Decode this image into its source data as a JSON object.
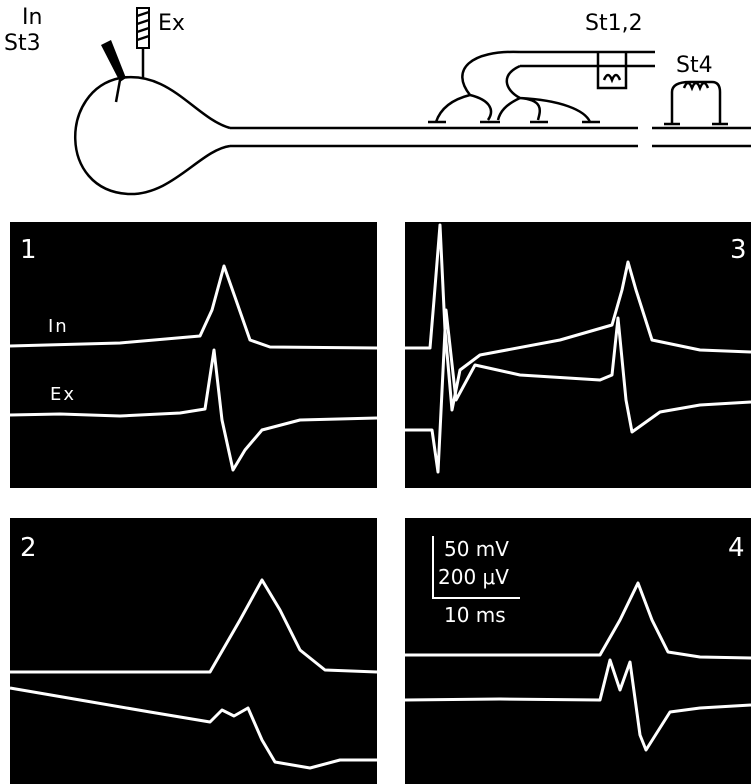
{
  "diagram": {
    "labels": {
      "in": "In",
      "st3": "St3",
      "ex": "Ex",
      "st12": "St1,2",
      "st4": "St4"
    }
  },
  "panels": [
    {
      "number": "1",
      "trace_labels": [
        "In",
        "Ex"
      ]
    },
    {
      "number": "2"
    },
    {
      "number": "3"
    },
    {
      "number": "4",
      "scale": [
        "50 mV",
        "200 μV",
        "10 ms"
      ]
    }
  ]
}
